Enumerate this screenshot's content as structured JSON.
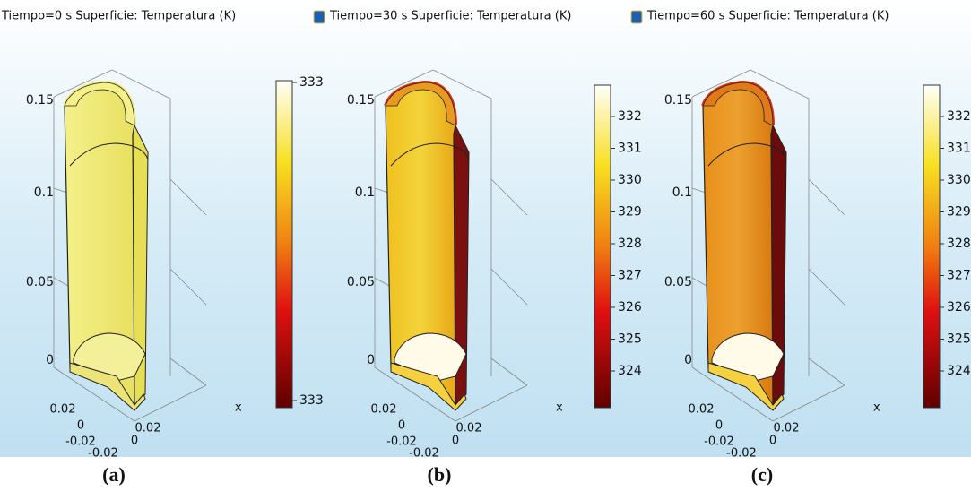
{
  "panels": [
    {
      "header": "Tiempo=0 s   Superficie: Temperatura (K)",
      "z_ticks": [
        "0.15",
        "0.1",
        "0.05",
        "0"
      ],
      "base_ticks": [
        "0.02",
        "0",
        "-0.02",
        "-0.02",
        "0",
        "0.02"
      ],
      "axis_label": "x",
      "colorbar_labels": [
        "333",
        "333"
      ],
      "caption": "(a)"
    },
    {
      "header": "Tiempo=30 s   Superficie: Temperatura (K)",
      "z_ticks": [
        "0.15",
        "0.1",
        "0.05",
        "0"
      ],
      "base_ticks": [
        "0.02",
        "0",
        "-0.02",
        "-0.02",
        "0",
        "0.02"
      ],
      "axis_label": "x",
      "colorbar_labels": [
        "332",
        "331",
        "330",
        "329",
        "328",
        "327",
        "326",
        "325",
        "324"
      ],
      "caption": "(b)"
    },
    {
      "header": "Tiempo=60 s   Superficie: Temperatura (K)",
      "z_ticks": [
        "0.15",
        "0.1",
        "0.05",
        "0"
      ],
      "base_ticks": [
        "0.02",
        "0",
        "-0.02",
        "-0.02",
        "0",
        "0.02"
      ],
      "axis_label": "x",
      "colorbar_labels": [
        "332",
        "331",
        "330",
        "329",
        "328",
        "327",
        "326",
        "325",
        "324"
      ],
      "caption": "(c)"
    }
  ]
}
